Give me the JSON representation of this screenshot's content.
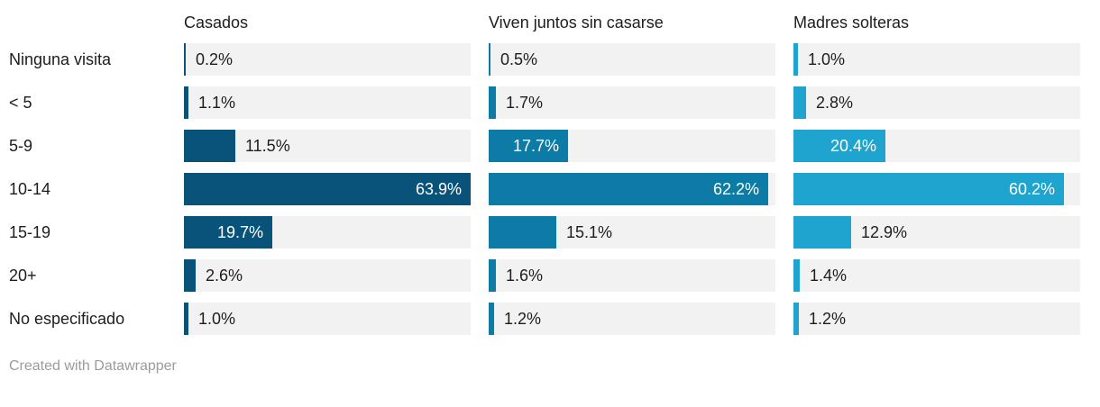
{
  "chart_data": {
    "type": "bar",
    "orientation": "horizontal",
    "categories": [
      "Ninguna visita",
      "< 5",
      "5-9",
      "10-14",
      "15-19",
      "20+",
      "No especificado"
    ],
    "series": [
      {
        "name": "Casados",
        "color": "#09537a",
        "values": [
          0.2,
          1.1,
          11.5,
          63.9,
          19.7,
          2.6,
          1.0
        ]
      },
      {
        "name": "Viven juntos sin casarse",
        "color": "#0c7ba6",
        "values": [
          0.5,
          1.7,
          17.7,
          62.2,
          15.1,
          1.6,
          1.2
        ]
      },
      {
        "name": "Madres solteras",
        "color": "#1ea4cf",
        "values": [
          1.0,
          2.8,
          20.4,
          60.2,
          12.9,
          1.4,
          1.2
        ]
      }
    ],
    "value_suffix": "%",
    "xlim": [
      0,
      63.9
    ],
    "track_color": "#f2f2f2",
    "label_color": "#1d1d1d",
    "inside_label_color": "#ffffff",
    "legend_position": "column-headers",
    "grid": false,
    "title": "",
    "xlabel": "",
    "ylabel": ""
  },
  "footer": {
    "attribution": "Created with Datawrapper"
  }
}
